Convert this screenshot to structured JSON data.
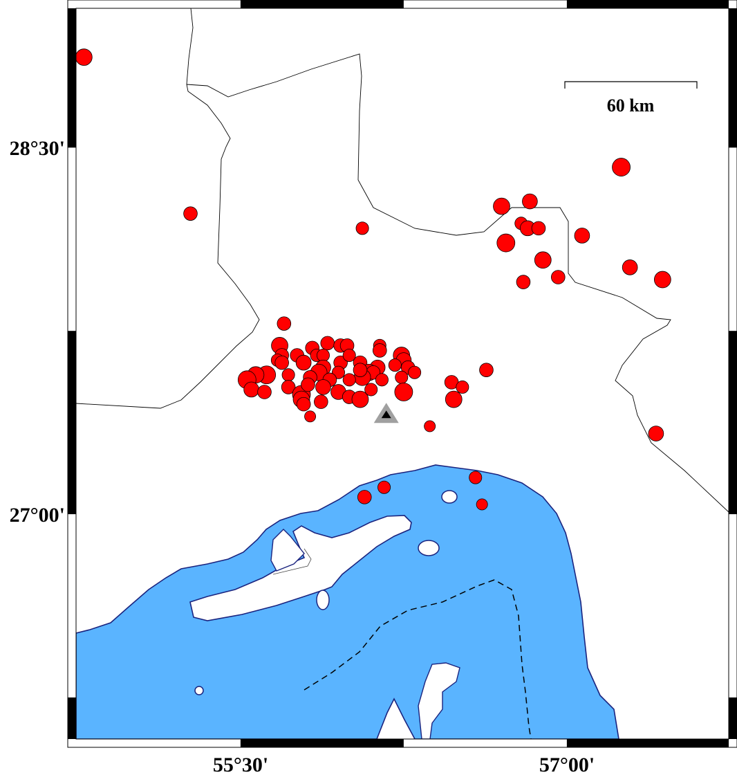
{
  "map": {
    "region": {
      "lon_min": 54.744,
      "lon_max": 57.744,
      "lat_min": 26.08,
      "lat_max": 29.07
    },
    "frame_style": "fancy",
    "colors": {
      "water": "#5AB4FF",
      "land": "#FFFFFF",
      "coastline": "#1A237E",
      "borders": "#000000",
      "events": "#FF0000",
      "station": "#A0A0A0"
    },
    "lat_labels": [
      "28°30'",
      "27°00'"
    ],
    "lon_labels": [
      "55°30'",
      "57°00'"
    ],
    "scale_bar": {
      "label": "60 km"
    },
    "station": {
      "lon": 56.17,
      "lat": 27.41,
      "symbol": "triangle"
    },
    "events_note_fields": [
      "lon",
      "lat",
      "mag"
    ],
    "events": [
      [
        54.78,
        28.87,
        4.6
      ],
      [
        55.27,
        28.23,
        3.8
      ],
      [
        56.06,
        28.17,
        3.5
      ],
      [
        57.25,
        28.42,
        5.0
      ],
      [
        56.7,
        28.26,
        4.6
      ],
      [
        56.83,
        28.28,
        4.2
      ],
      [
        56.79,
        28.19,
        3.5
      ],
      [
        56.82,
        28.17,
        4.2
      ],
      [
        56.87,
        28.17,
        3.8
      ],
      [
        56.72,
        28.11,
        5.0
      ],
      [
        57.07,
        28.14,
        4.2
      ],
      [
        56.89,
        28.04,
        4.6
      ],
      [
        56.8,
        27.95,
        3.8
      ],
      [
        56.96,
        27.97,
        3.8
      ],
      [
        57.29,
        28.01,
        4.2
      ],
      [
        57.44,
        27.96,
        4.6
      ],
      [
        55.7,
        27.78,
        3.8
      ],
      [
        57.41,
        27.33,
        4.2
      ],
      [
        56.63,
        27.59,
        3.8
      ],
      [
        56.47,
        27.54,
        3.8
      ],
      [
        56.52,
        27.52,
        3.5
      ],
      [
        56.48,
        27.47,
        4.6
      ],
      [
        56.37,
        27.36,
        3.1
      ],
      [
        55.82,
        27.4,
        3.1
      ],
      [
        56.58,
        27.15,
        3.5
      ],
      [
        56.61,
        27.04,
        3.1
      ],
      [
        56.16,
        27.11,
        3.5
      ],
      [
        56.07,
        27.07,
        3.8
      ],
      [
        55.68,
        27.69,
        4.6
      ],
      [
        55.69,
        27.65,
        3.8
      ],
      [
        55.67,
        27.63,
        3.5
      ],
      [
        55.69,
        27.62,
        3.8
      ],
      [
        55.76,
        27.65,
        3.8
      ],
      [
        55.79,
        27.62,
        4.2
      ],
      [
        55.83,
        27.68,
        3.8
      ],
      [
        55.85,
        27.65,
        3.5
      ],
      [
        55.9,
        27.7,
        3.8
      ],
      [
        55.88,
        27.65,
        3.5
      ],
      [
        55.96,
        27.69,
        3.8
      ],
      [
        55.99,
        27.69,
        3.8
      ],
      [
        55.96,
        27.62,
        3.8
      ],
      [
        56.0,
        27.65,
        3.5
      ],
      [
        56.05,
        27.62,
        3.8
      ],
      [
        56.14,
        27.69,
        3.5
      ],
      [
        56.14,
        27.67,
        3.8
      ],
      [
        56.13,
        27.6,
        4.2
      ],
      [
        56.09,
        27.58,
        4.6
      ],
      [
        56.24,
        27.65,
        4.6
      ],
      [
        56.25,
        27.63,
        4.2
      ],
      [
        56.27,
        27.6,
        3.8
      ],
      [
        56.21,
        27.61,
        3.5
      ],
      [
        56.3,
        27.58,
        3.5
      ],
      [
        56.24,
        27.56,
        3.5
      ],
      [
        56.11,
        27.58,
        3.8
      ],
      [
        56.06,
        27.56,
        4.6
      ],
      [
        56.05,
        27.59,
        3.8
      ],
      [
        55.95,
        27.58,
        3.5
      ],
      [
        55.88,
        27.6,
        4.2
      ],
      [
        55.86,
        27.58,
        4.6
      ],
      [
        55.91,
        27.55,
        3.8
      ],
      [
        55.88,
        27.52,
        4.2
      ],
      [
        55.82,
        27.56,
        3.8
      ],
      [
        55.72,
        27.57,
        3.5
      ],
      [
        55.72,
        27.52,
        3.8
      ],
      [
        55.62,
        27.57,
        5.0
      ],
      [
        55.57,
        27.57,
        4.6
      ],
      [
        55.53,
        27.55,
        5.0
      ],
      [
        55.55,
        27.51,
        4.2
      ],
      [
        55.61,
        27.5,
        3.8
      ],
      [
        55.78,
        27.49,
        5.0
      ],
      [
        55.78,
        27.47,
        4.6
      ],
      [
        55.87,
        27.46,
        3.8
      ],
      [
        55.95,
        27.5,
        4.2
      ],
      [
        56.0,
        27.48,
        3.8
      ],
      [
        56.05,
        27.47,
        4.6
      ],
      [
        56.1,
        27.51,
        3.5
      ],
      [
        56.25,
        27.5,
        5.0
      ],
      [
        56.15,
        27.55,
        3.5
      ],
      [
        56.0,
        27.55,
        3.5
      ],
      [
        55.79,
        27.45,
        3.8
      ],
      [
        55.81,
        27.53,
        3.8
      ]
    ]
  }
}
